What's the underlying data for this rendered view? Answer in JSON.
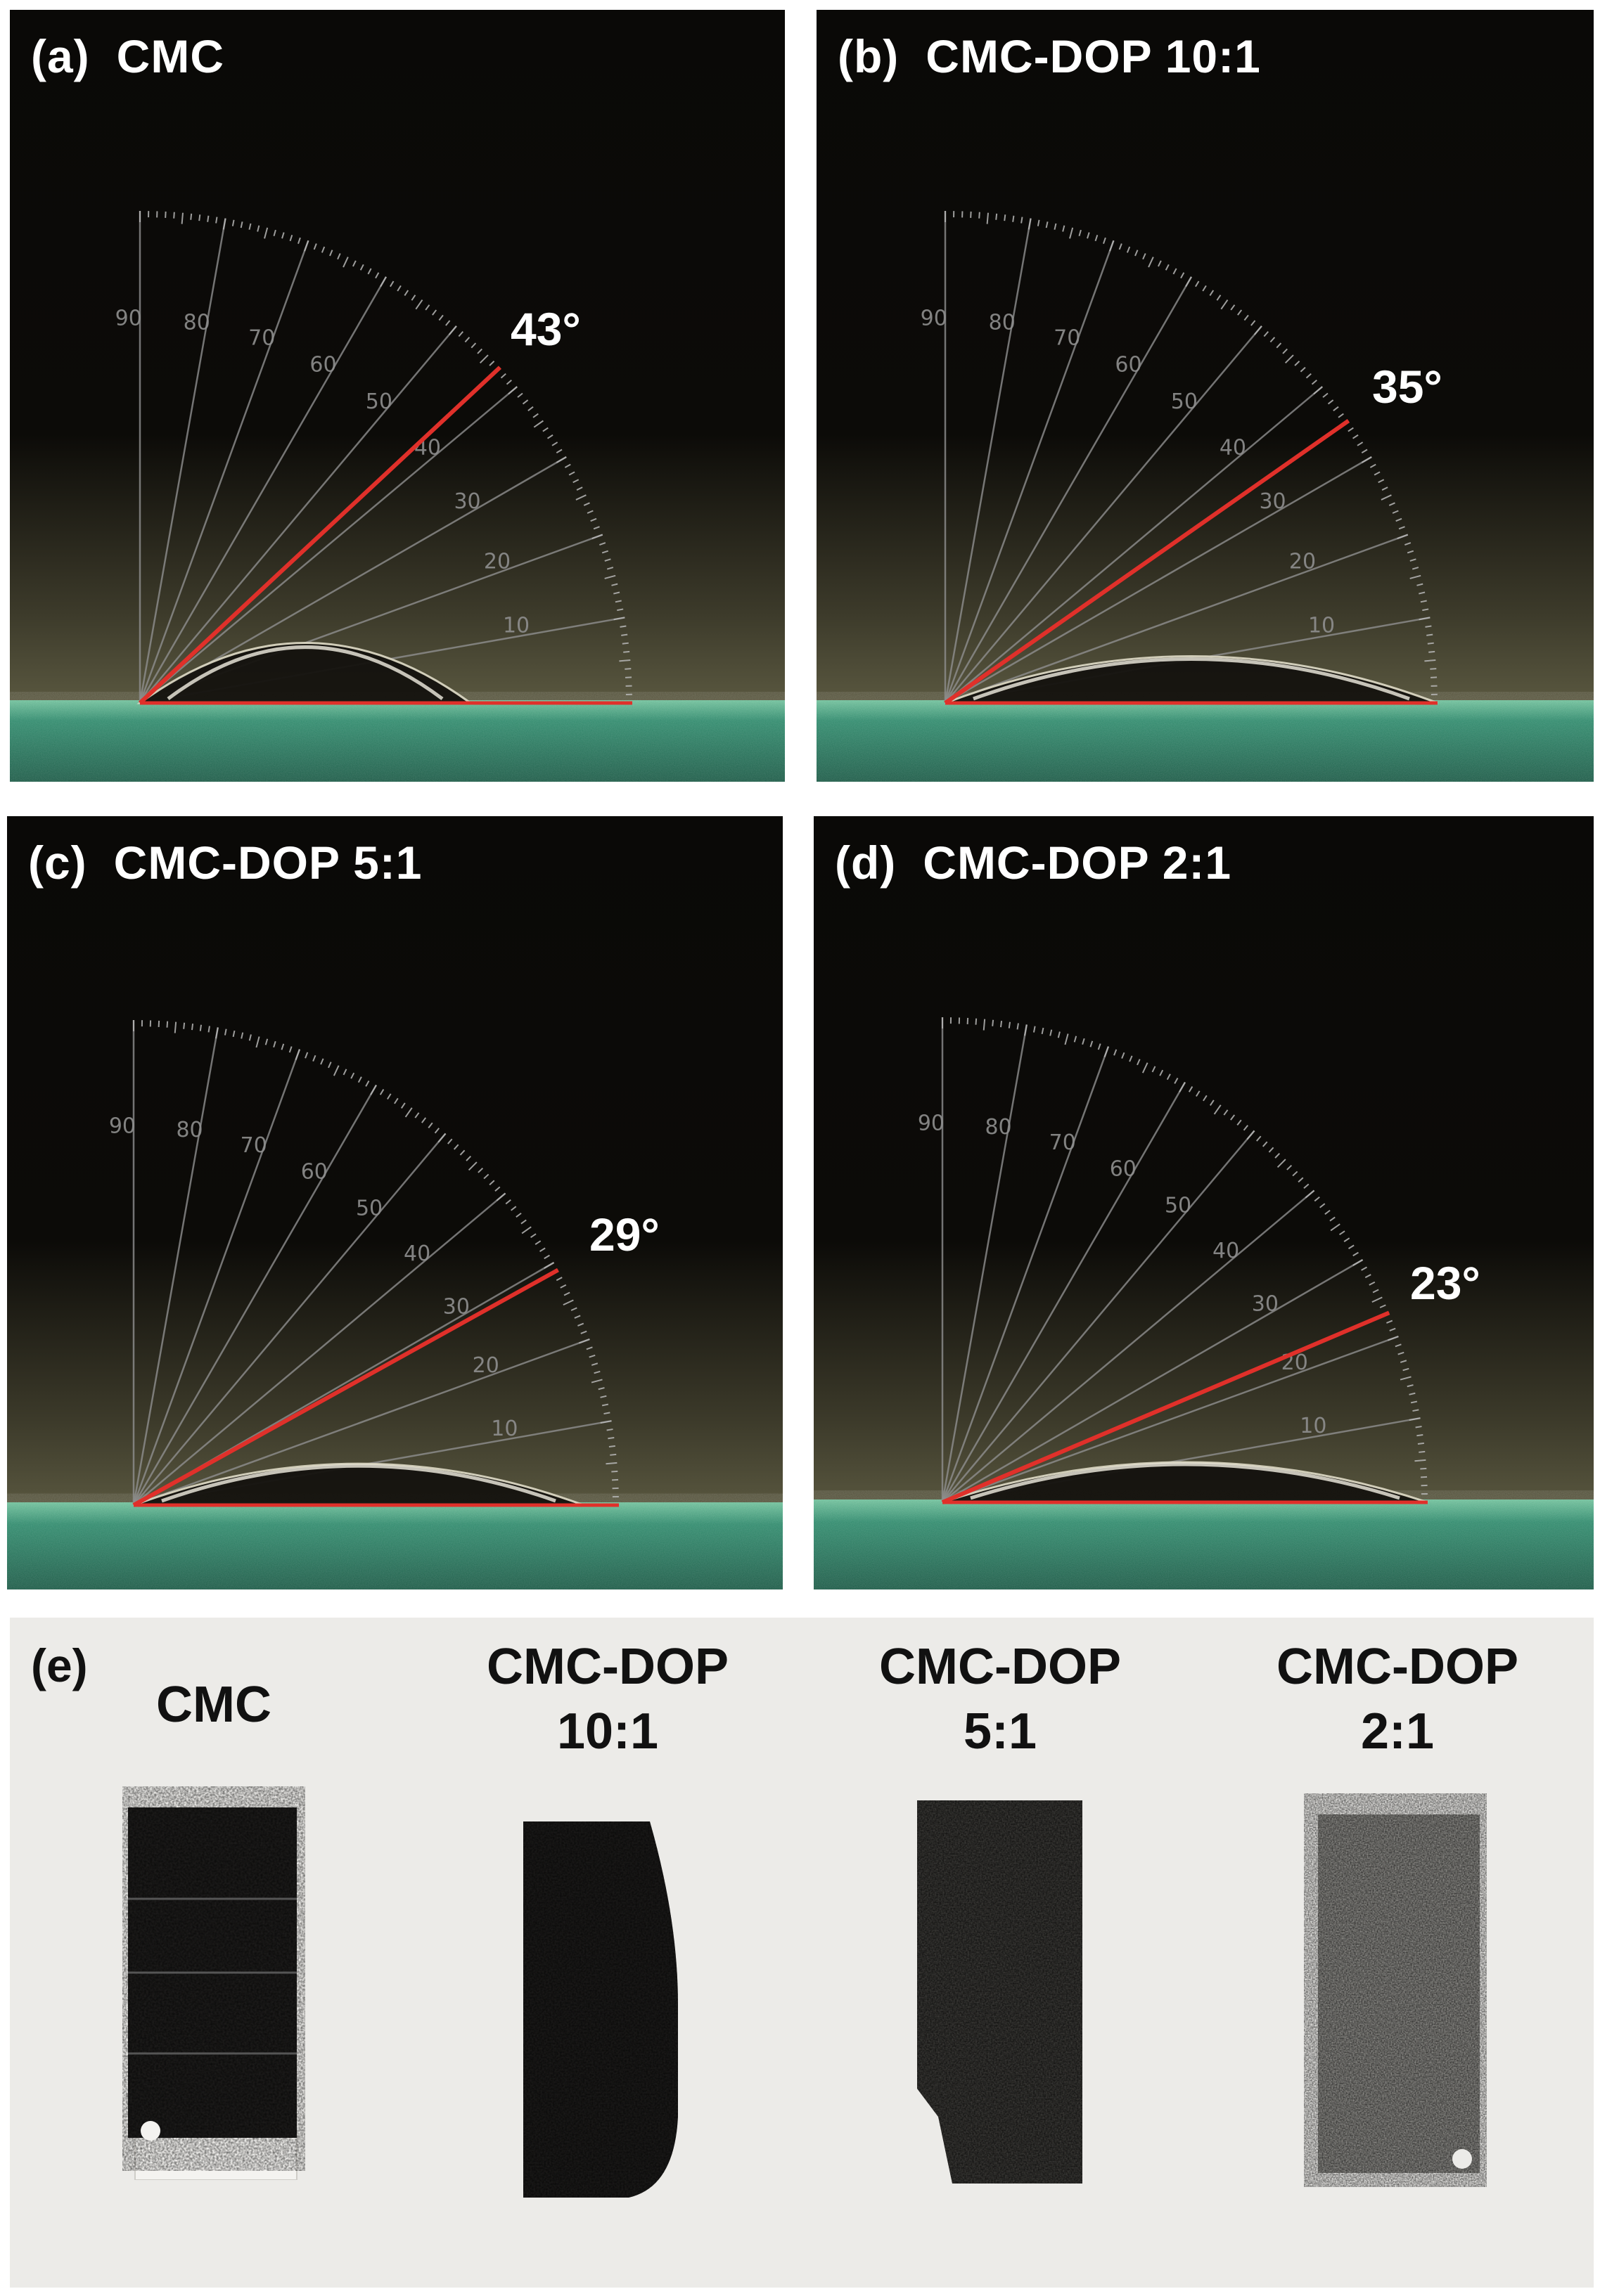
{
  "panels": [
    {
      "letter": "(a)",
      "title": "CMC",
      "angle_label": "43°",
      "angle_deg": 43
    },
    {
      "letter": "(b)",
      "title": "CMC-DOP 10:1",
      "angle_label": "35°",
      "angle_deg": 35
    },
    {
      "letter": "(c)",
      "title": "CMC-DOP 5:1",
      "angle_label": "29°",
      "angle_deg": 29
    },
    {
      "letter": "(d)",
      "title": "CMC-DOP 2:1",
      "angle_label": "23°",
      "angle_deg": 23
    }
  ],
  "protractor_ticks": [
    "10",
    "20",
    "30",
    "40",
    "50",
    "60",
    "70",
    "80",
    "90"
  ],
  "panel_e": {
    "letter": "(e)",
    "samples": [
      {
        "line1": "CMC",
        "line2": ""
      },
      {
        "line1": "CMC-DOP",
        "line2": "10:1"
      },
      {
        "line1": "CMC-DOP",
        "line2": "5:1"
      },
      {
        "line1": "CMC-DOP",
        "line2": "2:1"
      }
    ]
  },
  "colors": {
    "background": "#090806",
    "substrate": "#2e8c6e",
    "measurement_line": "#e0302a",
    "protractor": "#8f8f8f",
    "label_text": "#ffffff"
  }
}
